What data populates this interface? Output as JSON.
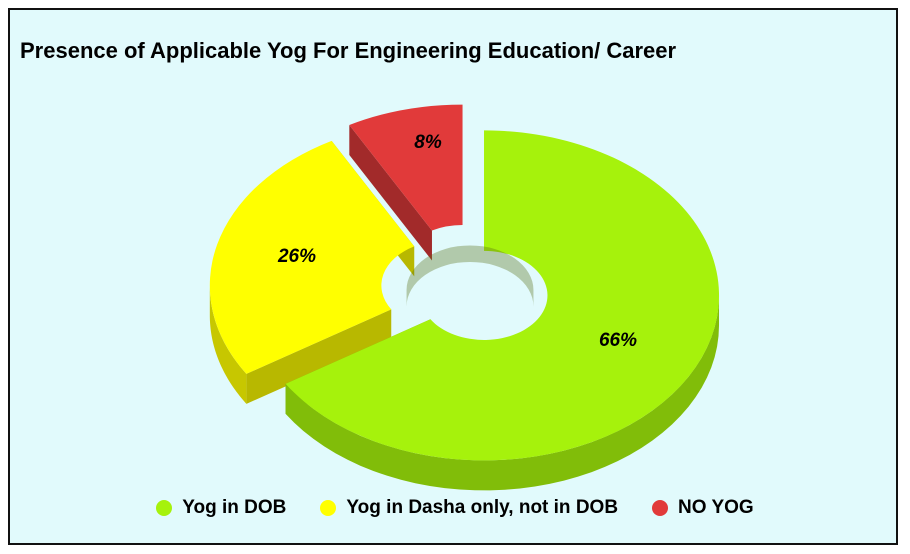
{
  "chart_data": {
    "type": "pie",
    "title": "Presence of Applicable Yog For Engineering Education/ Career",
    "categories": [
      "Yog in DOB",
      "Yog in Dasha only, not in DOB",
      "NO YOG"
    ],
    "values": [
      66,
      26,
      8
    ],
    "labels": [
      "66%",
      "26%",
      "8%"
    ],
    "colors": [
      "#a6f20c",
      "#ffff00",
      "#e13a3a"
    ],
    "legend_position": "bottom",
    "style": "3d-exploded-doughnut"
  }
}
